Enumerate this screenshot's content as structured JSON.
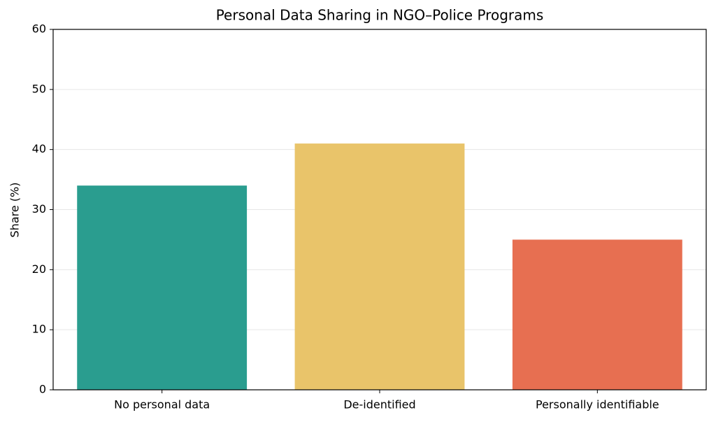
{
  "chart_data": {
    "type": "bar",
    "title": "Personal Data Sharing in NGO–Police Programs",
    "ylabel": "Share (%)",
    "categories": [
      "No personal data",
      "De-identified",
      "Personally identifiable"
    ],
    "values": [
      34,
      41,
      25
    ],
    "colors": [
      "#2a9d8f",
      "#e9c46a",
      "#e76f51"
    ],
    "ylim": [
      0,
      60
    ],
    "yticks": [
      0,
      10,
      20,
      30,
      40,
      50,
      60
    ],
    "grid": true
  }
}
